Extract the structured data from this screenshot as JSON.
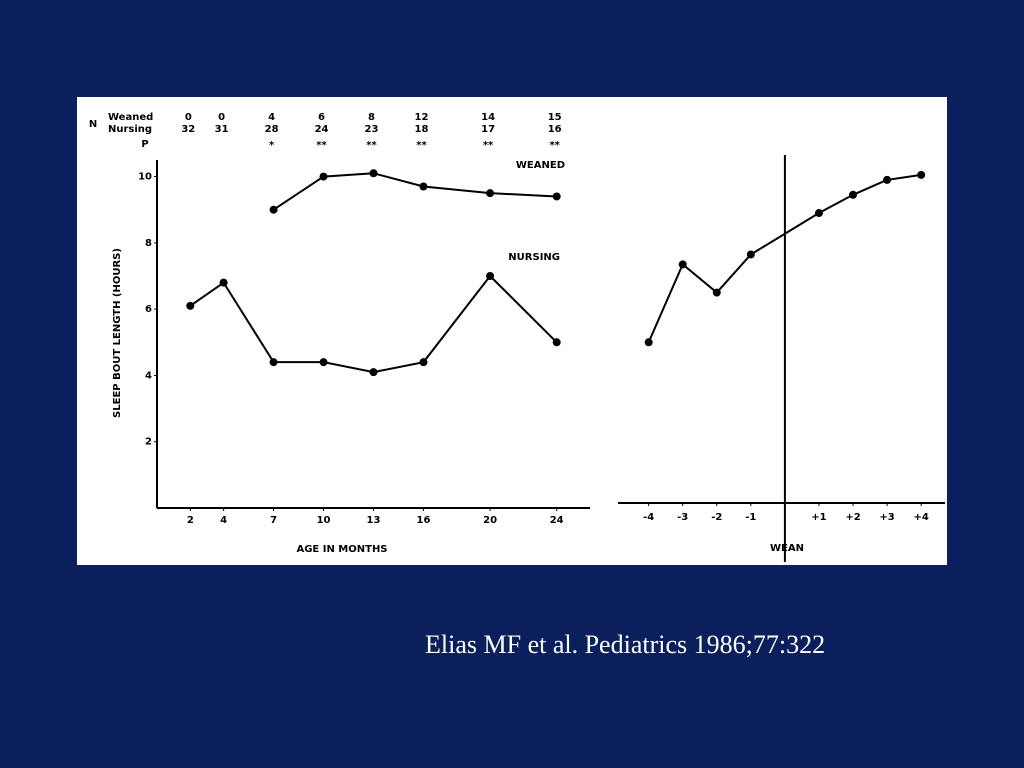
{
  "chart_data": [
    {
      "type": "line",
      "y_label": "SLEEP BOUT LENGTH (HOURS)",
      "x_label": "AGE IN MONTHS",
      "x": [
        2,
        4,
        7,
        10,
        13,
        16,
        20,
        24
      ],
      "xlim": [
        0,
        26
      ],
      "xticks": [
        2,
        4,
        7,
        10,
        13,
        16,
        20,
        24
      ],
      "ylim": [
        0,
        10.5
      ],
      "yticks": [
        2,
        4,
        6,
        8,
        10
      ],
      "series": [
        {
          "name": "WEANED",
          "color": "#000000",
          "values": [
            null,
            null,
            9.0,
            10.0,
            10.1,
            9.7,
            9.5,
            9.4
          ]
        },
        {
          "name": "NURSING",
          "color": "#000000",
          "values": [
            6.1,
            6.8,
            4.4,
            4.4,
            4.1,
            4.4,
            7.0,
            5.0
          ]
        }
      ],
      "sample_size": {
        "label": "N",
        "rows": [
          {
            "name": "Weaned",
            "values": [
              0,
              0,
              4,
              6,
              8,
              12,
              14,
              15
            ]
          },
          {
            "name": "Nursing",
            "values": [
              32,
              31,
              28,
              24,
              23,
              18,
              17,
              16
            ]
          }
        ]
      },
      "significance": {
        "label": "P",
        "values": [
          null,
          null,
          "*",
          "**",
          "**",
          "**",
          "**",
          "**"
        ]
      }
    },
    {
      "type": "line",
      "x_label": "WEAN",
      "x": [
        -4,
        -3,
        -2,
        -1,
        1,
        2,
        3,
        4
      ],
      "xlim": [
        -4.9,
        4.7
      ],
      "xticks": [
        -4,
        -3,
        -2,
        -1,
        {
          "value": 1,
          "label": "+1"
        },
        {
          "value": 2,
          "label": "+2"
        },
        {
          "value": 3,
          "label": "+3"
        },
        {
          "value": 4,
          "label": "+4"
        }
      ],
      "ylim": [
        0,
        10.5
      ],
      "wean_line": 0,
      "series": [
        {
          "color": "#000000",
          "values": [
            5.0,
            7.35,
            6.5,
            7.65,
            8.9,
            9.45,
            9.9,
            10.05
          ]
        }
      ]
    }
  ],
  "citation": "Elias MF et al. Pediatrics 1986;77:322"
}
